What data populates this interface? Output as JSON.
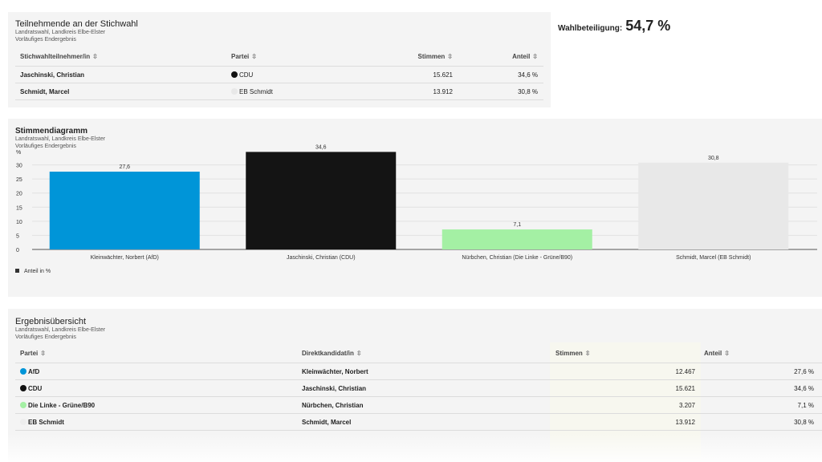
{
  "runoff": {
    "title": "Teilnehmende an der Stichwahl",
    "subtitle": "Landratswahl, Landkreis Elbe-Elster",
    "status": "Vorläufiges Endergebnis",
    "headers": {
      "candidate": "Stichwahlteilnehmer/in",
      "party": "Partei",
      "votes": "Stimmen",
      "share": "Anteil"
    },
    "rows": [
      {
        "candidate": "Jaschinski, Christian",
        "party": "CDU",
        "votes": "15.621",
        "share": "34,6 %",
        "color": "#111111"
      },
      {
        "candidate": "Schmidt, Marcel",
        "party": "EB Schmidt",
        "votes": "13.912",
        "share": "30,8 %",
        "color": "#e8e8e8"
      }
    ]
  },
  "turnout": {
    "label": "Wahlbeteiligung:",
    "value": "54,7 %"
  },
  "chart_panel": {
    "title": "Stimmendiagramm",
    "subtitle": "Landratswahl, Landkreis Elbe-Elster",
    "status": "Vorläufiges Endergebnis"
  },
  "chart_data": {
    "type": "bar",
    "categories": [
      "Kleinwächter, Norbert (AfD)",
      "Jaschinski, Christian (CDU)",
      "Nürbchen, Christian (Die Linke - Grüne/B90)",
      "Schmidt, Marcel (EB Schmidt)"
    ],
    "values": [
      27.6,
      34.6,
      7.1,
      30.8
    ],
    "value_labels": [
      "27,6",
      "34,6",
      "7,1",
      "30,8"
    ],
    "colors": [
      "#0095d8",
      "#141414",
      "#a4f0a4",
      "#e8e8e8"
    ],
    "ylabel": "%",
    "ylim": [
      0,
      35
    ],
    "yticks": [
      0,
      5,
      10,
      15,
      20,
      25,
      30
    ],
    "legend": "Anteil in %",
    "grid": true
  },
  "overview": {
    "title": "Ergebnisübersicht",
    "subtitle": "Landratswahl, Landkreis Elbe-Elster",
    "status": "Vorläufiges Endergebnis",
    "headers": {
      "party": "Partei",
      "candidate": "Direktkandidat/in",
      "votes": "Stimmen",
      "share": "Anteil"
    },
    "rows": [
      {
        "party": "AfD",
        "candidate": "Kleinwächter, Norbert",
        "votes": "12.467",
        "share": "27,6 %",
        "color": "#0095d8"
      },
      {
        "party": "CDU",
        "candidate": "Jaschinski, Christian",
        "votes": "15.621",
        "share": "34,6 %",
        "color": "#111111"
      },
      {
        "party": "Die Linke - Grüne/B90",
        "candidate": "Nürbchen, Christian",
        "votes": "3.207",
        "share": "7,1 %",
        "color": "#a4f0a4"
      },
      {
        "party": "EB Schmidt",
        "candidate": "Schmidt, Marcel",
        "votes": "13.912",
        "share": "30,8 %",
        "color": "#eeeeee"
      }
    ]
  }
}
